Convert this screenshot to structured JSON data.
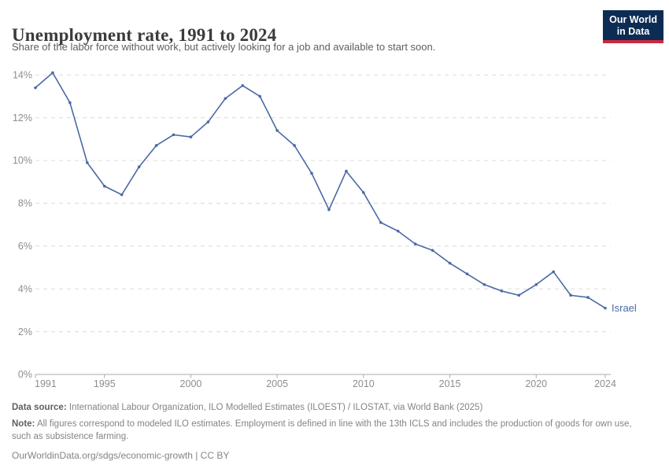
{
  "header": {
    "title": "Unemployment rate, 1991 to 2024",
    "subtitle": "Share of the labor force without work, but actively looking for a job and available to start soon.",
    "logo": {
      "line1": "Our World",
      "line2": "in Data",
      "bg": "#0d2c54",
      "accent": "#cc2a3e"
    }
  },
  "chart_data": {
    "type": "line",
    "title": "Unemployment rate, 1991 to 2024",
    "xlabel": "",
    "ylabel": "",
    "ylim": [
      0,
      14
    ],
    "grid": "horizontal-dashed",
    "legend_position": "end-of-line-label",
    "x": [
      1991,
      1992,
      1993,
      1994,
      1995,
      1996,
      1997,
      1998,
      1999,
      2000,
      2001,
      2002,
      2003,
      2004,
      2005,
      2006,
      2007,
      2008,
      2009,
      2010,
      2011,
      2012,
      2013,
      2014,
      2015,
      2016,
      2017,
      2018,
      2019,
      2020,
      2021,
      2022,
      2023,
      2024
    ],
    "series": [
      {
        "name": "Israel",
        "color": "#4b69a5",
        "values": [
          13.4,
          14.1,
          12.7,
          9.9,
          8.8,
          8.4,
          9.7,
          10.7,
          11.2,
          11.1,
          11.8,
          12.9,
          13.5,
          13.0,
          11.4,
          10.7,
          9.4,
          7.7,
          9.5,
          8.5,
          7.1,
          6.7,
          6.1,
          5.8,
          5.2,
          4.7,
          4.2,
          3.9,
          3.7,
          4.2,
          4.8,
          3.7,
          3.6,
          3.1
        ]
      }
    ],
    "yticks": {
      "values": [
        0,
        2,
        4,
        6,
        8,
        10,
        12,
        14
      ],
      "labels": [
        "0%",
        "2%",
        "4%",
        "6%",
        "8%",
        "10%",
        "12%",
        "14%"
      ]
    },
    "xticks": {
      "values": [
        1991,
        1995,
        2000,
        2005,
        2010,
        2015,
        2020,
        2024
      ],
      "labels": [
        "1991",
        "1995",
        "2000",
        "2005",
        "2010",
        "2015",
        "2020",
        "2024"
      ]
    },
    "end_label": "Israel",
    "colors": {
      "gridline": "#dcdcdc",
      "axis": "#ababab",
      "tick_text": "#8e8e8e"
    }
  },
  "footer": {
    "data_source_label": "Data source:",
    "data_source": "International Labour Organization, ILO Modelled Estimates (ILOEST) / ILOSTAT, via World Bank (2025)",
    "note_label": "Note:",
    "note": "All figures correspond to modeled ILO estimates. Employment is defined in line with the 13th ICLS and includes the production of goods for own use, such as subsistence farming.",
    "citation_link": "OurWorldinData.org/sdgs/economic-growth",
    "citation_separator": " | ",
    "citation_license": "CC BY"
  }
}
